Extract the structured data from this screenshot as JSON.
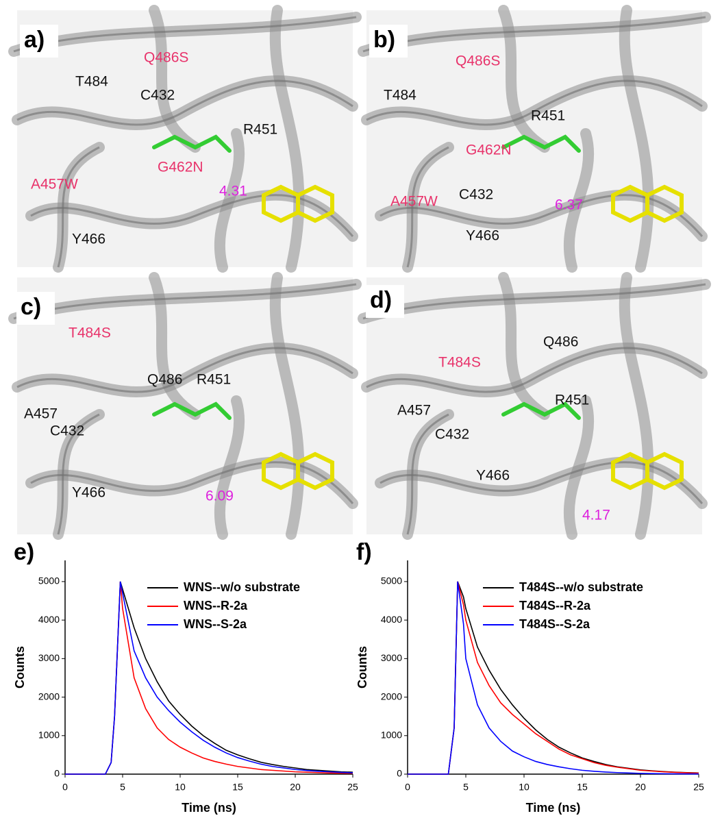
{
  "panels": [
    {
      "letter": "a)",
      "labels": [
        {
          "text": "Q486S",
          "color": "#e8336b"
        },
        {
          "text": "T484",
          "color": "#111"
        },
        {
          "text": "C432",
          "color": "#111"
        },
        {
          "text": "R451",
          "color": "#111"
        },
        {
          "text": "G462N",
          "color": "#e8336b"
        },
        {
          "text": "A457W",
          "color": "#e8336b"
        },
        {
          "text": "4.31",
          "color": "#dd22dd"
        },
        {
          "text": "Y466",
          "color": "#111"
        }
      ]
    },
    {
      "letter": "b)",
      "labels": [
        {
          "text": "Q486S",
          "color": "#e8336b"
        },
        {
          "text": "T484",
          "color": "#111"
        },
        {
          "text": "R451",
          "color": "#111"
        },
        {
          "text": "G462N",
          "color": "#e8336b"
        },
        {
          "text": "A457W",
          "color": "#e8336b"
        },
        {
          "text": "C432",
          "color": "#111"
        },
        {
          "text": "6.37",
          "color": "#dd22dd"
        },
        {
          "text": "Y466",
          "color": "#111"
        }
      ]
    },
    {
      "letter": "c)",
      "labels": [
        {
          "text": "T484S",
          "color": "#e8336b"
        },
        {
          "text": "Q486",
          "color": "#111"
        },
        {
          "text": "R451",
          "color": "#111"
        },
        {
          "text": "A457",
          "color": "#111"
        },
        {
          "text": "C432",
          "color": "#111"
        },
        {
          "text": "Y466",
          "color": "#111"
        },
        {
          "text": "6.09",
          "color": "#dd22dd"
        }
      ]
    },
    {
      "letter": "d)",
      "labels": [
        {
          "text": "Q486",
          "color": "#111"
        },
        {
          "text": "T484S",
          "color": "#e8336b"
        },
        {
          "text": "R451",
          "color": "#111"
        },
        {
          "text": "A457",
          "color": "#111"
        },
        {
          "text": "C432",
          "color": "#111"
        },
        {
          "text": "Y466",
          "color": "#111"
        },
        {
          "text": "4.17",
          "color": "#dd22dd"
        }
      ]
    }
  ],
  "chart_data": [
    {
      "type": "line",
      "panel_label": "e)",
      "xlabel": "Time (ns)",
      "ylabel": "Counts",
      "x": [
        0,
        3,
        3.5,
        4,
        4.3,
        4.8,
        5,
        6,
        7,
        8,
        9,
        10,
        11,
        12,
        13,
        14,
        15,
        16,
        17,
        18,
        19,
        20,
        21,
        22,
        23,
        24,
        25
      ],
      "xlim": [
        0,
        25
      ],
      "xticks": [
        0,
        5,
        10,
        15,
        20,
        25
      ],
      "ylim": [
        0,
        5550
      ],
      "yticks": [
        0,
        1000,
        2000,
        3000,
        4000,
        5000
      ],
      "series": [
        {
          "name": "WNS--w/o substrate",
          "color": "#000000",
          "values": [
            0,
            0,
            0,
            300,
            1500,
            5000,
            4800,
            3800,
            3000,
            2400,
            1900,
            1550,
            1250,
            1000,
            800,
            620,
            500,
            400,
            310,
            250,
            200,
            160,
            120,
            100,
            80,
            60,
            50
          ]
        },
        {
          "name": "WNS--R-2a",
          "color": "#ff0000",
          "values": [
            0,
            0,
            0,
            300,
            1500,
            5000,
            4300,
            2500,
            1700,
            1200,
            900,
            700,
            550,
            420,
            330,
            260,
            200,
            160,
            120,
            100,
            80,
            60,
            50,
            40,
            30,
            25,
            20
          ]
        },
        {
          "name": "WNS--S-2a",
          "color": "#0000ff",
          "values": [
            0,
            0,
            0,
            300,
            1500,
            5000,
            4700,
            3200,
            2500,
            2000,
            1650,
            1350,
            1100,
            880,
            700,
            550,
            430,
            340,
            260,
            200,
            160,
            120,
            95,
            75,
            60,
            45,
            35
          ]
        }
      ]
    },
    {
      "type": "line",
      "panel_label": "f)",
      "xlabel": "Time (ns)",
      "ylabel": "Counts",
      "x": [
        0,
        3,
        3.5,
        4,
        4.3,
        4.8,
        5,
        6,
        7,
        8,
        9,
        10,
        11,
        12,
        13,
        14,
        15,
        16,
        17,
        18,
        19,
        20,
        21,
        22,
        23,
        24,
        25
      ],
      "xlim": [
        0,
        25
      ],
      "xticks": [
        0,
        5,
        10,
        15,
        20,
        25
      ],
      "ylim": [
        0,
        5550
      ],
      "yticks": [
        0,
        1000,
        2000,
        3000,
        4000,
        5000
      ],
      "series": [
        {
          "name": "T484S--w/o substrate",
          "color": "#000000",
          "values": [
            0,
            0,
            0,
            1200,
            5000,
            4600,
            4300,
            3300,
            2700,
            2200,
            1800,
            1450,
            1150,
            900,
            700,
            550,
            420,
            330,
            250,
            190,
            150,
            110,
            85,
            65,
            50,
            40,
            30
          ]
        },
        {
          "name": "T484S--R-2a",
          "color": "#ff0000",
          "values": [
            0,
            0,
            0,
            1200,
            5000,
            4400,
            4000,
            2900,
            2300,
            1850,
            1550,
            1300,
            1050,
            850,
            650,
            500,
            400,
            300,
            230,
            180,
            140,
            100,
            80,
            60,
            45,
            35,
            25
          ]
        },
        {
          "name": "T484S--S-2a",
          "color": "#0000ff",
          "values": [
            0,
            0,
            0,
            1200,
            5000,
            3900,
            3000,
            1800,
            1200,
            850,
            600,
            450,
            330,
            250,
            190,
            140,
            100,
            75,
            55,
            40,
            30,
            20,
            15,
            10,
            8,
            6,
            5
          ]
        }
      ]
    }
  ]
}
